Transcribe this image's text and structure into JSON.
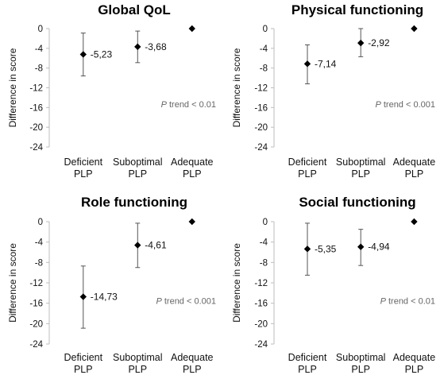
{
  "chart_data": [
    {
      "type": "scatter",
      "title": "Global QoL",
      "ylabel": "Difference in score",
      "ylim": [
        -24,
        0
      ],
      "yticks": [
        "0",
        "-4",
        "-8",
        "-12",
        "-16",
        "-20",
        "-24"
      ],
      "categories": [
        [
          "Deficient",
          "PLP"
        ],
        [
          "Suboptimal",
          "PLP"
        ],
        [
          "Adequate",
          "PLP"
        ]
      ],
      "values": [
        -5.23,
        -3.68,
        0
      ],
      "ci_low": [
        -9.6,
        -6.9,
        0
      ],
      "ci_high": [
        -0.9,
        -0.5,
        0
      ],
      "data_labels": [
        "-5,23",
        "-3,68",
        ""
      ],
      "annotation_p": "P",
      "annotation_rest": " trend < 0.01"
    },
    {
      "type": "scatter",
      "title": "Physical functioning",
      "ylabel": "Difference in score",
      "ylim": [
        -24,
        0
      ],
      "yticks": [
        "0",
        "-4",
        "-8",
        "-12",
        "-16",
        "-20",
        "-24"
      ],
      "categories": [
        [
          "Deficient",
          "PLP"
        ],
        [
          "Suboptimal",
          "PLP"
        ],
        [
          "Adequate",
          "PLP"
        ]
      ],
      "values": [
        -7.14,
        -2.92,
        0
      ],
      "ci_low": [
        -11.2,
        -5.7,
        0
      ],
      "ci_high": [
        -3.3,
        0,
        0
      ],
      "data_labels": [
        "-7,14",
        "-2,92",
        ""
      ],
      "annotation_p": "P",
      "annotation_rest": " trend < 0.001"
    },
    {
      "type": "scatter",
      "title": "Role functioning",
      "ylabel": "Difference in score",
      "ylim": [
        -24,
        0
      ],
      "yticks": [
        "0",
        "-4",
        "-8",
        "-12",
        "-16",
        "-20",
        "-24"
      ],
      "categories": [
        [
          "Deficient",
          "PLP"
        ],
        [
          "Suboptimal",
          "PLP"
        ],
        [
          "Adequate",
          "PLP"
        ]
      ],
      "values": [
        -14.73,
        -4.61,
        0
      ],
      "ci_low": [
        -20.9,
        -9.0,
        0
      ],
      "ci_high": [
        -8.7,
        -0.3,
        0
      ],
      "data_labels": [
        "-14,73",
        "-4,61",
        ""
      ],
      "annotation_p": "P",
      "annotation_rest": " trend < 0.001"
    },
    {
      "type": "scatter",
      "title": "Social functioning",
      "ylabel": "Difference in score",
      "ylim": [
        -24,
        0
      ],
      "yticks": [
        "0",
        "-4",
        "-8",
        "-12",
        "-16",
        "-20",
        "-24"
      ],
      "categories": [
        [
          "Deficient",
          "PLP"
        ],
        [
          "Suboptimal",
          "PLP"
        ],
        [
          "Adequate",
          "PLP"
        ]
      ],
      "values": [
        -5.35,
        -4.94,
        0
      ],
      "ci_low": [
        -10.5,
        -8.6,
        0
      ],
      "ci_high": [
        -0.3,
        -1.5,
        0
      ],
      "data_labels": [
        "-5,35",
        "-4,94",
        ""
      ],
      "annotation_p": "P",
      "annotation_rest": " trend < 0.01"
    }
  ],
  "colors": {
    "marker": "#000000",
    "errorbar": "#555555",
    "axis": "#bdbdbd",
    "annotation": "#666666"
  }
}
